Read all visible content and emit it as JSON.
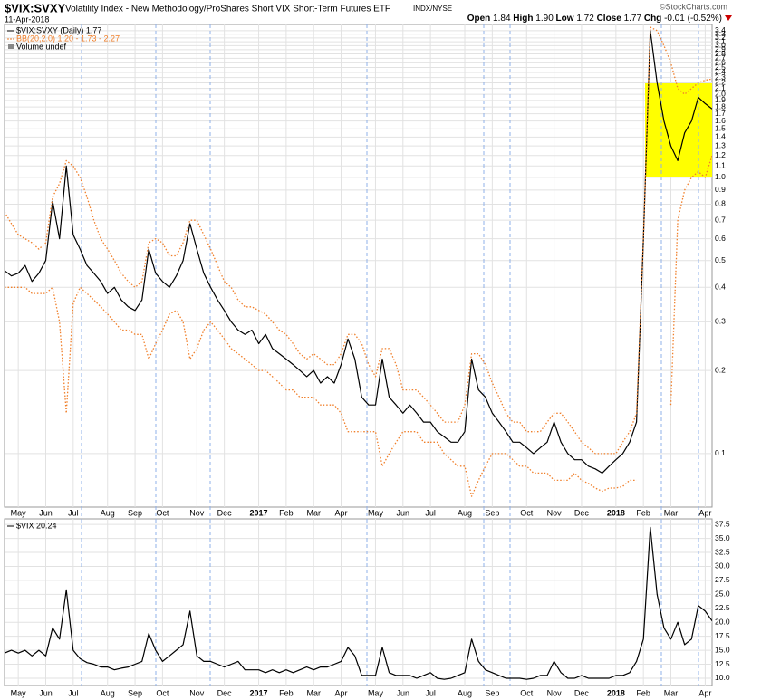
{
  "header": {
    "symbol": "$VIX:SVXY",
    "description": "Volatility Index - New Methodology/ProShares Short VIX Short-Term Futures ETF",
    "exchange": "INDX/NYSE",
    "date": "11-Apr-2018",
    "watermark": "©StockCharts.com",
    "quote": [
      {
        "label": "Open",
        "value": "1.84"
      },
      {
        "label": "High",
        "value": "1.90"
      },
      {
        "label": "Low",
        "value": "1.72"
      },
      {
        "label": "Close",
        "value": "1.77"
      },
      {
        "label": "Chg",
        "value": "-0.01 (-0.52%)"
      }
    ]
  },
  "chart_data": [
    {
      "type": "line",
      "log_y": true,
      "grid": true,
      "categories": [
        null,
        null,
        "May",
        null,
        null,
        null,
        "Jun",
        null,
        null,
        null,
        "Jul",
        null,
        null,
        null,
        null,
        "Aug",
        null,
        null,
        null,
        "Sep",
        null,
        null,
        null,
        "Oct",
        null,
        null,
        null,
        null,
        "Nov",
        null,
        null,
        null,
        "Dec",
        null,
        null,
        null,
        null,
        "2017",
        null,
        null,
        null,
        "Feb",
        null,
        null,
        null,
        "Mar",
        null,
        null,
        null,
        "Apr",
        null,
        null,
        null,
        null,
        "May",
        null,
        null,
        null,
        "Jun",
        null,
        null,
        null,
        "Jul",
        null,
        null,
        null,
        null,
        "Aug",
        null,
        null,
        null,
        "Sep",
        null,
        null,
        null,
        null,
        "Oct",
        null,
        null,
        null,
        "Nov",
        null,
        null,
        null,
        "Dec",
        null,
        null,
        null,
        null,
        "2018",
        null,
        null,
        null,
        "Feb",
        null,
        null,
        null,
        "Mar",
        null,
        null,
        null,
        null,
        "Apr",
        null
      ],
      "series": [
        {
          "name": "$VIX:SVXY (Daily) 1.77",
          "color": "#000000",
          "values": [
            0.46,
            0.44,
            0.45,
            0.48,
            0.42,
            0.45,
            0.5,
            0.82,
            0.6,
            1.1,
            0.62,
            0.55,
            0.48,
            0.45,
            0.42,
            0.38,
            0.4,
            0.36,
            0.34,
            0.33,
            0.36,
            0.55,
            0.45,
            0.42,
            0.4,
            0.44,
            0.5,
            0.68,
            0.55,
            0.45,
            0.4,
            0.36,
            0.33,
            0.3,
            0.28,
            0.27,
            0.28,
            0.25,
            0.27,
            0.24,
            0.23,
            0.22,
            0.21,
            0.2,
            0.19,
            0.2,
            0.18,
            0.19,
            0.18,
            0.21,
            0.26,
            0.22,
            0.16,
            0.15,
            0.15,
            0.22,
            0.16,
            0.15,
            0.14,
            0.15,
            0.14,
            0.13,
            0.13,
            0.12,
            0.115,
            0.11,
            0.11,
            0.12,
            0.22,
            0.17,
            0.16,
            0.14,
            0.13,
            0.12,
            0.11,
            0.11,
            0.105,
            0.1,
            0.105,
            0.11,
            0.13,
            0.11,
            0.1,
            0.095,
            0.095,
            0.09,
            0.088,
            0.085,
            0.09,
            0.095,
            0.1,
            0.11,
            0.13,
            0.6,
            3.4,
            2.2,
            1.6,
            1.3,
            1.15,
            1.45,
            1.6,
            1.95,
            1.85,
            1.77
          ]
        },
        {
          "name": "BB(20,2.0) 1.20 - 1.73 - 2.27",
          "color": "#f07f2a",
          "style": "dotted",
          "upper": [
            0.75,
            0.68,
            0.62,
            0.6,
            0.58,
            0.55,
            0.58,
            0.85,
            0.95,
            1.15,
            1.1,
            1.0,
            0.85,
            0.7,
            0.6,
            0.55,
            0.5,
            0.45,
            0.42,
            0.4,
            0.42,
            0.58,
            0.6,
            0.58,
            0.52,
            0.52,
            0.58,
            0.7,
            0.7,
            0.62,
            0.55,
            0.48,
            0.42,
            0.4,
            0.36,
            0.34,
            0.34,
            0.33,
            0.32,
            0.3,
            0.28,
            0.27,
            0.25,
            0.23,
            0.22,
            0.23,
            0.22,
            0.21,
            0.21,
            0.23,
            0.27,
            0.27,
            0.25,
            0.21,
            0.19,
            0.24,
            0.24,
            0.21,
            0.17,
            0.17,
            0.17,
            0.16,
            0.15,
            0.14,
            0.13,
            0.13,
            0.13,
            0.15,
            0.23,
            0.23,
            0.21,
            0.18,
            0.16,
            0.14,
            0.13,
            0.13,
            0.12,
            0.12,
            0.12,
            0.13,
            0.14,
            0.14,
            0.13,
            0.12,
            0.11,
            0.105,
            0.1,
            0.1,
            0.1,
            0.1,
            0.11,
            0.12,
            0.14,
            0.6,
            3.5,
            3.4,
            3.0,
            2.6,
            2.1,
            2.0,
            2.1,
            2.2,
            2.25,
            2.27
          ],
          "lower": [
            0.4,
            0.4,
            0.4,
            0.4,
            0.38,
            0.38,
            0.38,
            0.4,
            0.3,
            0.14,
            0.35,
            0.4,
            0.38,
            0.36,
            0.34,
            0.32,
            0.3,
            0.28,
            0.28,
            0.27,
            0.27,
            0.22,
            0.25,
            0.28,
            0.32,
            0.33,
            0.3,
            0.22,
            0.24,
            0.28,
            0.3,
            0.28,
            0.26,
            0.24,
            0.23,
            0.22,
            0.21,
            0.2,
            0.2,
            0.19,
            0.18,
            0.17,
            0.17,
            0.16,
            0.16,
            0.16,
            0.15,
            0.15,
            0.15,
            0.14,
            0.12,
            0.12,
            0.12,
            0.12,
            0.12,
            0.09,
            0.1,
            0.11,
            0.12,
            0.12,
            0.12,
            0.11,
            0.11,
            0.11,
            0.1,
            0.095,
            0.09,
            0.09,
            0.07,
            0.08,
            0.09,
            0.1,
            0.1,
            0.1,
            0.095,
            0.09,
            0.09,
            0.085,
            0.085,
            0.085,
            0.08,
            0.08,
            0.08,
            0.085,
            0.08,
            0.078,
            0.075,
            0.073,
            0.075,
            0.075,
            0.076,
            0.08,
            0.08,
            null,
            null,
            null,
            null,
            0.15,
            0.7,
            0.9,
            1.0,
            1.05,
            1.0,
            1.2
          ]
        }
      ],
      "legend_extra": "Volume undef",
      "ylim": [
        0.064,
        3.58
      ],
      "yticks": [
        0.1,
        0.2,
        0.3,
        0.4,
        0.5,
        0.6,
        0.7,
        0.8,
        0.9,
        {
          "value": 1,
          "label": "1.0"
        },
        1.1,
        1.2,
        1.3,
        1.4,
        1.5,
        1.6,
        1.7,
        1.8,
        1.9,
        {
          "value": 2,
          "label": "2.0"
        },
        2.1,
        2.2,
        2.3,
        2.4,
        2.5,
        2.6,
        2.7,
        2.8,
        2.9,
        {
          "value": 3,
          "label": "3.0"
        },
        3.1,
        3.2,
        3.3,
        3.4
      ]
    },
    {
      "type": "line",
      "log_y": false,
      "grid": true,
      "categories": [
        null,
        null,
        "May",
        null,
        null,
        null,
        "Jun",
        null,
        null,
        null,
        "Jul",
        null,
        null,
        null,
        null,
        "Aug",
        null,
        null,
        null,
        "Sep",
        null,
        null,
        null,
        "Oct",
        null,
        null,
        null,
        null,
        "Nov",
        null,
        null,
        null,
        "Dec",
        null,
        null,
        null,
        null,
        "2017",
        null,
        null,
        null,
        "Feb",
        null,
        null,
        null,
        "Mar",
        null,
        null,
        null,
        "Apr",
        null,
        null,
        null,
        null,
        "May",
        null,
        null,
        null,
        "Jun",
        null,
        null,
        null,
        "Jul",
        null,
        null,
        null,
        null,
        "Aug",
        null,
        null,
        null,
        "Sep",
        null,
        null,
        null,
        null,
        "Oct",
        null,
        null,
        null,
        "Nov",
        null,
        null,
        null,
        "Dec",
        null,
        null,
        null,
        null,
        "2018",
        null,
        null,
        null,
        "Feb",
        null,
        null,
        null,
        "Mar",
        null,
        null,
        null,
        null,
        "Apr",
        null
      ],
      "series": [
        {
          "name": "$VIX 20.24",
          "color": "#000000",
          "values": [
            14.5,
            15,
            14.5,
            15,
            14,
            15,
            14,
            19,
            17,
            25.8,
            15,
            13.5,
            12.8,
            12.5,
            12,
            12,
            11.5,
            11.8,
            12,
            12.5,
            13,
            18,
            15,
            13,
            14,
            15,
            16,
            22,
            14,
            13,
            13,
            12.5,
            12,
            12.5,
            13,
            11.5,
            11.5,
            11.5,
            11,
            11.5,
            11,
            11.5,
            11,
            11.5,
            12,
            11.5,
            12,
            12,
            12.5,
            13,
            15.5,
            14,
            10.5,
            10.5,
            10.5,
            15.5,
            11,
            10.5,
            10.5,
            10.5,
            10,
            10.5,
            11,
            10,
            9.8,
            10,
            10.5,
            11,
            17,
            13,
            11.5,
            11,
            10.5,
            10,
            10,
            10,
            9.8,
            10,
            10.5,
            10.5,
            13,
            11,
            10,
            10,
            10.5,
            10,
            10,
            10,
            10,
            10.5,
            10.5,
            11,
            13,
            17,
            37,
            25,
            19,
            17,
            20,
            16,
            17,
            23,
            22,
            20.24
          ]
        }
      ],
      "ylim": [
        8.7,
        38.5
      ],
      "yticks": [
        {
          "value": 10,
          "label": "10.0"
        },
        12.5,
        {
          "value": 15,
          "label": "15.0"
        },
        17.5,
        {
          "value": 20,
          "label": "20.0"
        },
        22.5,
        {
          "value": 25,
          "label": "25.0"
        },
        27.5,
        {
          "value": 30,
          "label": "30.0"
        },
        32.5,
        {
          "value": 35,
          "label": "35.0"
        },
        37.5
      ]
    }
  ]
}
